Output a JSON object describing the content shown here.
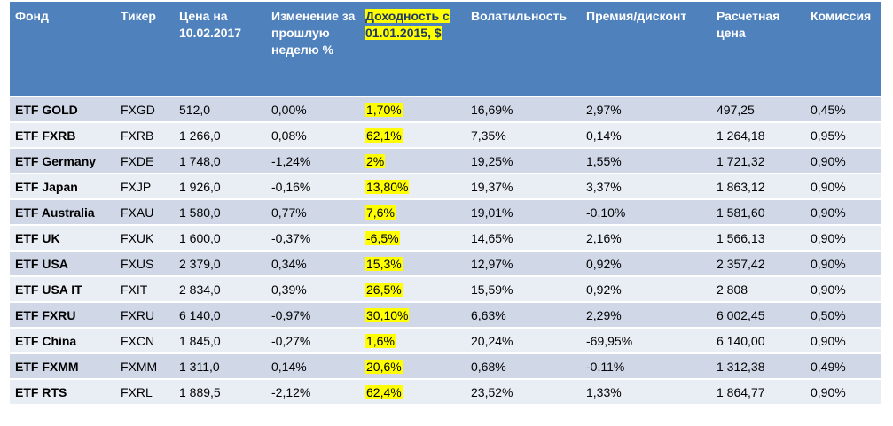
{
  "table": {
    "headers": {
      "fund": "Фонд",
      "ticker": "Тикер",
      "price": "Цена на 10.02.2017",
      "change": "Изменение за прошлую неделю %",
      "yield": "Доходность с 01.01.2015, $",
      "volatility": "Волатильность",
      "premium": "Премия/дисконт",
      "calc_price": "Расчетная цена",
      "fee": "Комиссия"
    },
    "rows": [
      {
        "fund": "ETF GOLD",
        "ticker": "FXGD",
        "price": "512,0",
        "change": "0,00%",
        "yield": "1,70%",
        "volatility": "16,69%",
        "premium": "2,97%",
        "calc_price": "497,25",
        "fee": "0,45%"
      },
      {
        "fund": "ETF FXRB",
        "ticker": "FXRB",
        "price": "1 266,0",
        "change": "0,08%",
        "yield": "62,1%",
        "volatility": "7,35%",
        "premium": "0,14%",
        "calc_price": "1 264,18",
        "fee": "0,95%"
      },
      {
        "fund": "ETF Germany",
        "ticker": "FXDE",
        "price": "1 748,0",
        "change": "-1,24%",
        "yield": "2%",
        "volatility": "19,25%",
        "premium": "1,55%",
        "calc_price": "1 721,32",
        "fee": "0,90%"
      },
      {
        "fund": "ETF Japan",
        "ticker": "FXJP",
        "price": "1 926,0",
        "change": "-0,16%",
        "yield": "13,80%",
        "volatility": "19,37%",
        "premium": "3,37%",
        "calc_price": "1 863,12",
        "fee": "0,90%"
      },
      {
        "fund": "ETF Australia",
        "ticker": "FXAU",
        "price": "1 580,0",
        "change": "0,77%",
        "yield": "7,6%",
        "volatility": "19,01%",
        "premium": "-0,10%",
        "calc_price": "1 581,60",
        "fee": "0,90%"
      },
      {
        "fund": "ETF UK",
        "ticker": "FXUK",
        "price": "1 600,0",
        "change": "-0,37%",
        "yield": "-6,5%",
        "volatility": "14,65%",
        "premium": "2,16%",
        "calc_price": "1 566,13",
        "fee": "0,90%"
      },
      {
        "fund": "ETF USA",
        "ticker": "FXUS",
        "price": "2 379,0",
        "change": "0,34%",
        "yield": "15,3%",
        "volatility": "12,97%",
        "premium": "0,92%",
        "calc_price": "2 357,42",
        "fee": "0,90%"
      },
      {
        "fund": "ETF USA IT",
        "ticker": "FXIT",
        "price": "2 834,0",
        "change": "0,39%",
        "yield": "26,5%",
        "volatility": "15,59%",
        "premium": "0,92%",
        "calc_price": "2 808",
        "fee": "0,90%"
      },
      {
        "fund": "ETF FXRU",
        "ticker": "FXRU",
        "price": "6 140,0",
        "change": "-0,97%",
        "yield": "30,10%",
        "volatility": "6,63%",
        "premium": "2,29%",
        "calc_price": "6 002,45",
        "fee": "0,50%"
      },
      {
        "fund": "ETF China",
        "ticker": "FXCN",
        "price": "1 845,0",
        "change": "-0,27%",
        "yield": "1,6%",
        "volatility": "20,24%",
        "premium": "-69,95%",
        "calc_price": "6 140,00",
        "fee": "0,90%"
      },
      {
        "fund": "ETF FXMM",
        "ticker": "FXMM",
        "price": "1 311,0",
        "change": "0,14%",
        "yield": "20,6%",
        "volatility": "0,68%",
        "premium": "-0,11%",
        "calc_price": "1 312,38",
        "fee": "0,49%"
      },
      {
        "fund": "ETF RTS",
        "ticker": "FXRL",
        "price": "1 889,5",
        "change": "-2,12%",
        "yield": "62,4%",
        "volatility": "23,52%",
        "premium": "1,33%",
        "calc_price": "1 864,77",
        "fee": "0,90%"
      }
    ]
  },
  "colors": {
    "header_bg": "#4f81bd",
    "row_odd": "#d0d8e8",
    "row_even": "#e9edf4",
    "highlight": "#ffff00"
  }
}
